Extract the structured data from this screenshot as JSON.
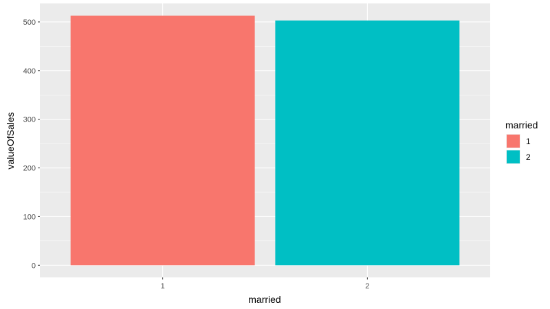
{
  "chart_data": {
    "type": "bar",
    "categories": [
      "1",
      "2"
    ],
    "values": [
      513,
      503
    ],
    "colors": [
      "#F8766D",
      "#00BFC4"
    ],
    "xlabel": "married",
    "ylabel": "valueOfSales",
    "ylim": [
      -25,
      538
    ],
    "yticks": [
      0,
      100,
      200,
      300,
      400,
      500
    ],
    "ytick_labels": [
      "0",
      "100",
      "200",
      "300",
      "400",
      "500"
    ],
    "grid": true,
    "panel_background": "#EBEBEB",
    "grid_color": "#FFFFFF",
    "legend": {
      "title": "married",
      "position": "right",
      "entries": [
        {
          "label": "1",
          "color": "#F8766D"
        },
        {
          "label": "2",
          "color": "#00BFC4"
        }
      ]
    }
  }
}
